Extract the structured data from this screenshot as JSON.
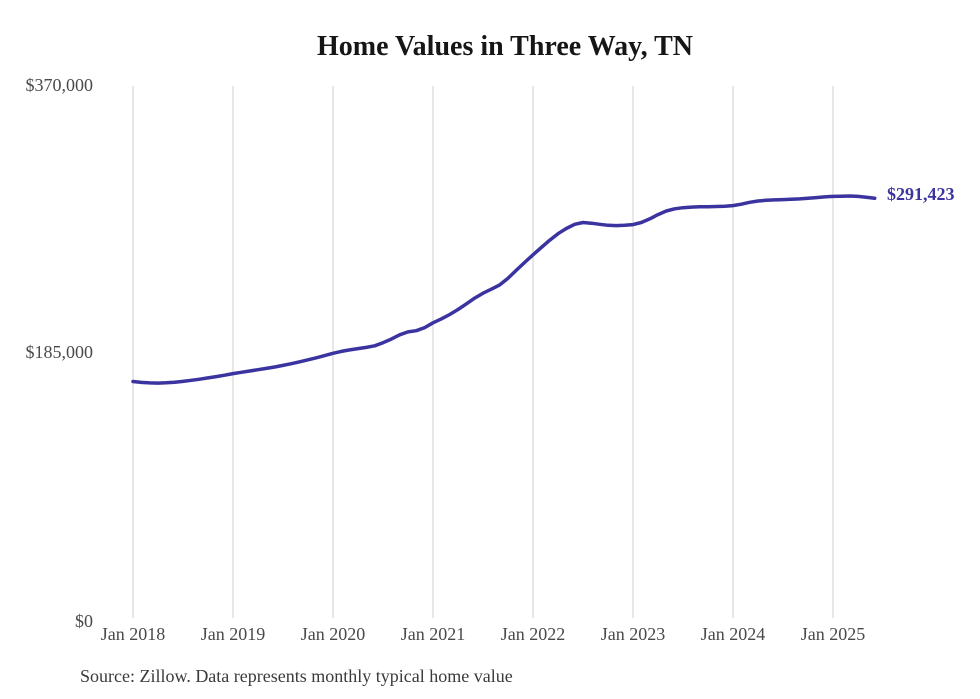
{
  "chart_data": {
    "type": "line",
    "title": "Home Values in Three Way, TN",
    "series_name": "Monthly typical home value",
    "months": [
      "2018-01",
      "2018-02",
      "2018-03",
      "2018-04",
      "2018-05",
      "2018-06",
      "2018-07",
      "2018-08",
      "2018-09",
      "2018-10",
      "2018-11",
      "2018-12",
      "2019-01",
      "2019-02",
      "2019-03",
      "2019-04",
      "2019-05",
      "2019-06",
      "2019-07",
      "2019-08",
      "2019-09",
      "2019-10",
      "2019-11",
      "2019-12",
      "2020-01",
      "2020-02",
      "2020-03",
      "2020-04",
      "2020-05",
      "2020-06",
      "2020-07",
      "2020-08",
      "2020-09",
      "2020-10",
      "2020-11",
      "2020-12",
      "2021-01",
      "2021-02",
      "2021-03",
      "2021-04",
      "2021-05",
      "2021-06",
      "2021-07",
      "2021-08",
      "2021-09",
      "2021-10",
      "2021-11",
      "2021-12",
      "2022-01",
      "2022-02",
      "2022-03",
      "2022-04",
      "2022-05",
      "2022-06",
      "2022-07",
      "2022-08",
      "2022-09",
      "2022-10",
      "2022-11",
      "2022-12",
      "2023-01",
      "2023-02",
      "2023-03",
      "2023-04",
      "2023-05",
      "2023-06",
      "2023-07",
      "2023-08",
      "2023-09",
      "2023-10",
      "2023-11",
      "2023-12",
      "2024-01",
      "2024-02",
      "2024-03",
      "2024-04",
      "2024-05",
      "2024-06",
      "2024-07",
      "2024-08",
      "2024-09",
      "2024-10",
      "2024-11",
      "2024-12",
      "2025-01",
      "2025-02",
      "2025-03",
      "2025-04",
      "2025-05",
      "2025-06"
    ],
    "values": [
      164000,
      163400,
      163000,
      162900,
      163100,
      163500,
      164100,
      164800,
      165600,
      166500,
      167400,
      168400,
      169500,
      170400,
      171300,
      172200,
      173100,
      174100,
      175200,
      176400,
      177700,
      179100,
      180500,
      182000,
      183600,
      184900,
      186000,
      186900,
      187700,
      188800,
      191000,
      193500,
      196500,
      198500,
      199300,
      201500,
      204800,
      207500,
      210600,
      214100,
      218000,
      222000,
      225400,
      228200,
      231200,
      235800,
      241300,
      246800,
      252100,
      257200,
      262300,
      266800,
      270400,
      273300,
      274600,
      274100,
      273300,
      272600,
      272400,
      272600,
      273100,
      274600,
      277100,
      280100,
      282600,
      284100,
      284900,
      285300,
      285500,
      285600,
      285700,
      285900,
      286300,
      287300,
      288600,
      289500,
      290000,
      290300,
      290500,
      290700,
      291000,
      291400,
      291900,
      292400,
      292700,
      292900,
      293000,
      292700,
      292100,
      291423
    ],
    "x_tick_labels": [
      "Jan 2018",
      "Jan 2019",
      "Jan 2020",
      "Jan 2021",
      "Jan 2022",
      "Jan 2023",
      "Jan 2024",
      "Jan 2025"
    ],
    "y_tick_labels": [
      "$0",
      "$185,000",
      "$370,000"
    ],
    "ylim": [
      0,
      370000
    ],
    "grid": "vertical-only",
    "legend": "none",
    "end_label": "$291,423",
    "line_color": "#3b34a0",
    "source_note": "Source: Zillow. Data represents monthly typical home value"
  }
}
